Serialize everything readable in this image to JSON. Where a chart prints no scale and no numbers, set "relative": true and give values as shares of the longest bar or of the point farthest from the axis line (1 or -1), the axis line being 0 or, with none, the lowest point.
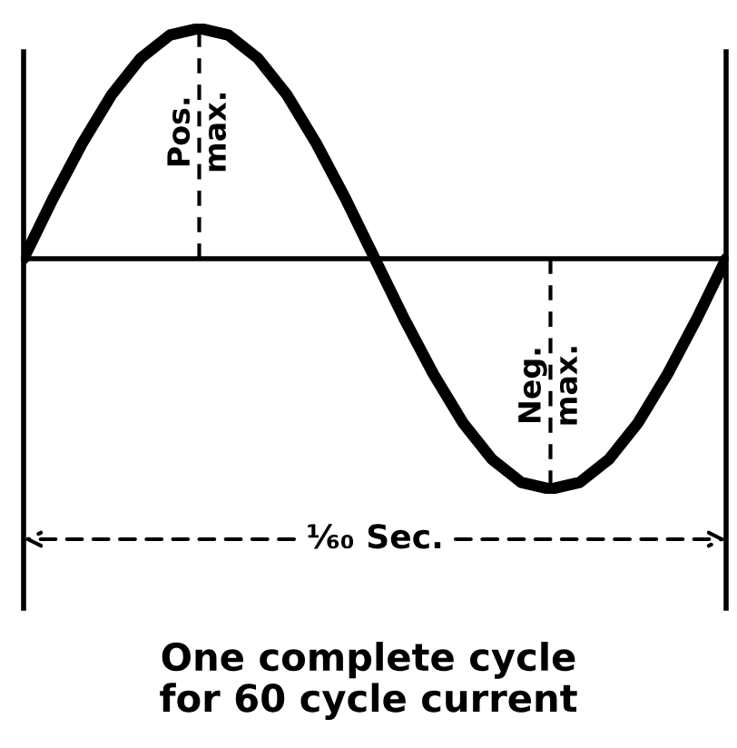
{
  "chart_data": {
    "type": "line",
    "relative": true,
    "color": "#000000",
    "categories": [
      null,
      null,
      null,
      null,
      null,
      null,
      null,
      null,
      null,
      null,
      null,
      null,
      null,
      null,
      null,
      null,
      null,
      null,
      null,
      null,
      null,
      null,
      null,
      null,
      null
    ],
    "values": [
      0,
      0.26,
      0.5,
      0.71,
      0.87,
      0.97,
      1,
      0.97,
      0.87,
      0.71,
      0.5,
      0.26,
      0,
      -0.26,
      -0.5,
      -0.71,
      -0.87,
      -0.97,
      -1,
      -0.97,
      -0.87,
      -0.71,
      -0.5,
      -0.26,
      0
    ],
    "annotations": [
      "Pos.\nmax.",
      "Neg.\nmax.",
      "¹⁄₆₀ Sec.",
      "One complete cycle\nfor 60 cycle current"
    ]
  }
}
